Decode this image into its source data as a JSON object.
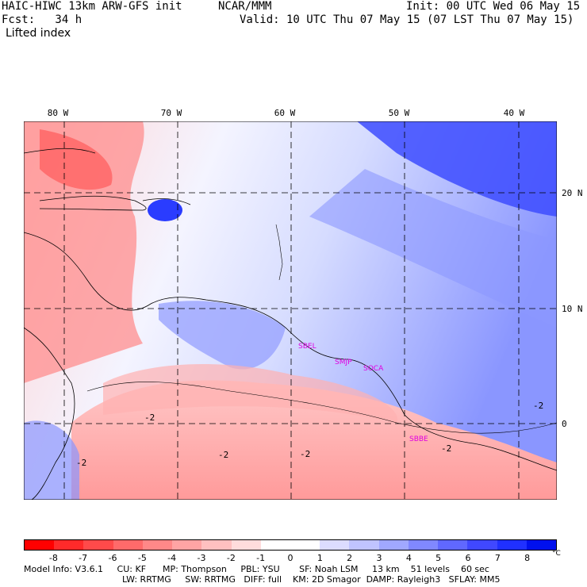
{
  "header": {
    "model": "HAIC-HIWC 13km ARW-GFS init",
    "org": "NCAR/MMM",
    "init": "Init: 00 UTC Wed 06 May 15",
    "fcst": "Fcst:   34 h",
    "valid": "Valid: 10 UTC Thu 07 May 15 (07 LST Thu 07 May 15)",
    "field": "Lifted index"
  },
  "map": {
    "lon_labels": [
      "80 W",
      "70 W",
      "60 W",
      "50 W",
      "40 W"
    ],
    "lat_labels": [
      "20 N",
      "10 N",
      "0"
    ],
    "contour_labels": [
      "-2",
      "-2",
      "-2",
      "-2",
      "-2",
      "-2"
    ],
    "stations": [
      "SBEL",
      "SMJP",
      "SOCA",
      "SBBE"
    ]
  },
  "colorbar": {
    "ticks": [
      "-8",
      "-7",
      "-6",
      "-5",
      "-4",
      "-3",
      "-2",
      "-1",
      "0",
      "1",
      "2",
      "3",
      "4",
      "5",
      "6",
      "7",
      "8"
    ],
    "unit": "°C",
    "colors": [
      "#ff0000",
      "#ff2a2a",
      "#ff4a4a",
      "#ff6a6a",
      "#ff8888",
      "#ffa4a4",
      "#ffc0c0",
      "#ffdcdc",
      "#ffffff",
      "#ffffff",
      "#dcdcff",
      "#c0c4ff",
      "#a0a8ff",
      "#8088ff",
      "#6068ff",
      "#4048ff",
      "#2030ff",
      "#0010ee"
    ]
  },
  "footer": {
    "line1": "Model Info: V3.6.1     CU: KF      MP: Thompson     PBL: YSU       SF: Noah LSM     13 km    51 levels    60 sec",
    "line2": "LW: RRTMG     SW: RRTMG   DIFF: full    KM: 2D Smagor  DAMP: Rayleigh3   SFLAY: MM5"
  }
}
